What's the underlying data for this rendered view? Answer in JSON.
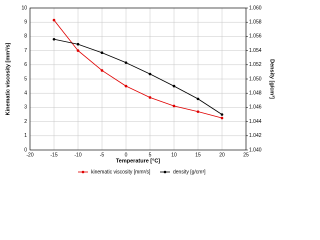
{
  "chart_data": {
    "type": "line",
    "x": [
      -15,
      -10,
      -5,
      0,
      5,
      10,
      15,
      20
    ],
    "xlabel": "Temperature [°C]",
    "ylabel": "Kinematic viscosity [mm²/s]",
    "y2label": "Density [g/cm³]",
    "xlim": [
      -20,
      25
    ],
    "xticks": [
      -20,
      -15,
      -10,
      -5,
      0,
      5,
      10,
      15,
      20,
      25
    ],
    "ylim": [
      0,
      10
    ],
    "yticks": [
      0,
      1,
      2,
      3,
      4,
      5,
      6,
      7,
      8,
      9,
      10
    ],
    "y2lim": [
      1.04,
      1.06
    ],
    "y2ticks": [
      {
        "value": 1.04,
        "label": "1.040"
      },
      1.042,
      1.044,
      1.046,
      1.048,
      {
        "value": 1.05,
        "label": "1.050"
      },
      1.052,
      1.054,
      1.056,
      1.058,
      {
        "value": 1.06,
        "label": "1.060"
      }
    ],
    "grid": true,
    "legend": "bottom",
    "series": [
      {
        "name": "kinematic viscosity [mm²/s]",
        "color": "#e00000",
        "values": [
          9.15,
          7.0,
          5.6,
          4.5,
          3.7,
          3.1,
          2.7,
          2.25
        ]
      },
      {
        "name": "density [g/cm³]",
        "color": "#000000",
        "axis": "y2",
        "values": [
          1.0556,
          1.0549,
          1.0537,
          1.0523,
          1.0507,
          1.049,
          1.0472,
          1.045
        ]
      }
    ]
  }
}
